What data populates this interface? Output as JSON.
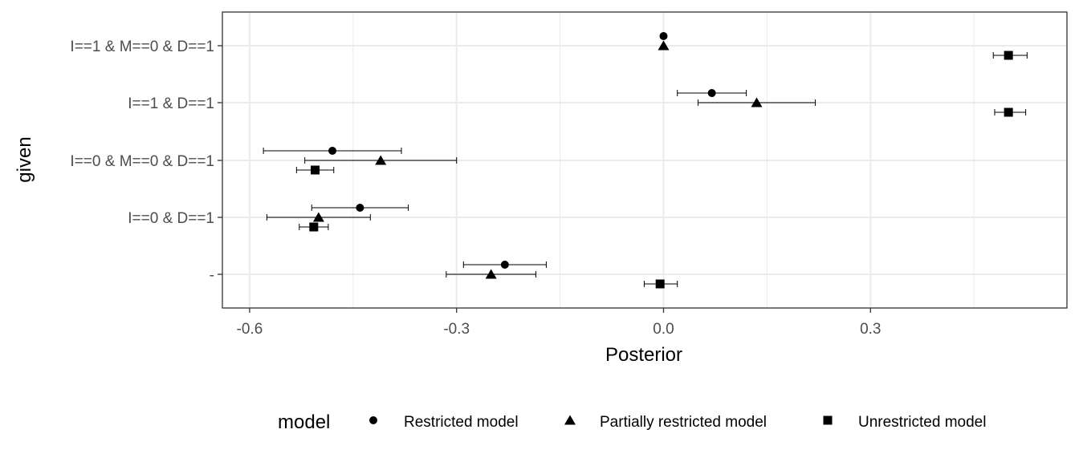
{
  "chart_data": {
    "type": "scatter",
    "subtype": "point-range (dot plot with horizontal interval bars)",
    "xlabel": "Posterior",
    "ylabel": "given",
    "xlim": [
      -0.6,
      0.58
    ],
    "x_ticks": [
      -0.6,
      -0.3,
      0.0,
      0.3
    ],
    "x_tick_labels": [
      "-0.6",
      "-0.3",
      "0.0",
      "0.3"
    ],
    "categories": [
      "I==1 & M==0 & D==1",
      "I==1 & D==1",
      "I==0 & M==0 & D==1",
      "I==0 & D==1",
      "-"
    ],
    "grid": true,
    "legend": {
      "title": "model",
      "position": "bottom",
      "entries": [
        {
          "label": "Restricted model",
          "shape": "circle"
        },
        {
          "label": "Partially restricted model",
          "shape": "triangle"
        },
        {
          "label": "Unrestricted model",
          "shape": "square"
        }
      ]
    },
    "series": [
      {
        "name": "Restricted model",
        "shape": "circle",
        "points": [
          {
            "given": "I==1 & M==0 & D==1",
            "estimate": 0.0,
            "lower": 0.0,
            "upper": 0.0
          },
          {
            "given": "I==1 & D==1",
            "estimate": 0.07,
            "lower": 0.02,
            "upper": 0.12
          },
          {
            "given": "I==0 & M==0 & D==1",
            "estimate": -0.48,
            "lower": -0.58,
            "upper": -0.38
          },
          {
            "given": "I==0 & D==1",
            "estimate": -0.44,
            "lower": -0.51,
            "upper": -0.37
          },
          {
            "given": "-",
            "estimate": -0.23,
            "lower": -0.29,
            "upper": -0.17
          }
        ]
      },
      {
        "name": "Partially restricted model",
        "shape": "triangle",
        "points": [
          {
            "given": "I==1 & M==0 & D==1",
            "estimate": 0.0,
            "lower": 0.0,
            "upper": 0.0
          },
          {
            "given": "I==1 & D==1",
            "estimate": 0.135,
            "lower": 0.05,
            "upper": 0.22
          },
          {
            "given": "I==0 & M==0 & D==1",
            "estimate": -0.41,
            "lower": -0.52,
            "upper": -0.3
          },
          {
            "given": "I==0 & D==1",
            "estimate": -0.5,
            "lower": -0.575,
            "upper": -0.425
          },
          {
            "given": "-",
            "estimate": -0.25,
            "lower": -0.315,
            "upper": -0.185
          }
        ]
      },
      {
        "name": "Unrestricted model",
        "shape": "square",
        "points": [
          {
            "given": "I==1 & M==0 & D==1",
            "estimate": 0.5,
            "lower": 0.478,
            "upper": 0.527
          },
          {
            "given": "I==1 & D==1",
            "estimate": 0.5,
            "lower": 0.48,
            "upper": 0.525
          },
          {
            "given": "I==0 & M==0 & D==1",
            "estimate": -0.505,
            "lower": -0.532,
            "upper": -0.478
          },
          {
            "given": "I==0 & D==1",
            "estimate": -0.507,
            "lower": -0.528,
            "upper": -0.486
          },
          {
            "given": "-",
            "estimate": -0.005,
            "lower": -0.028,
            "upper": 0.02
          }
        ]
      }
    ]
  }
}
